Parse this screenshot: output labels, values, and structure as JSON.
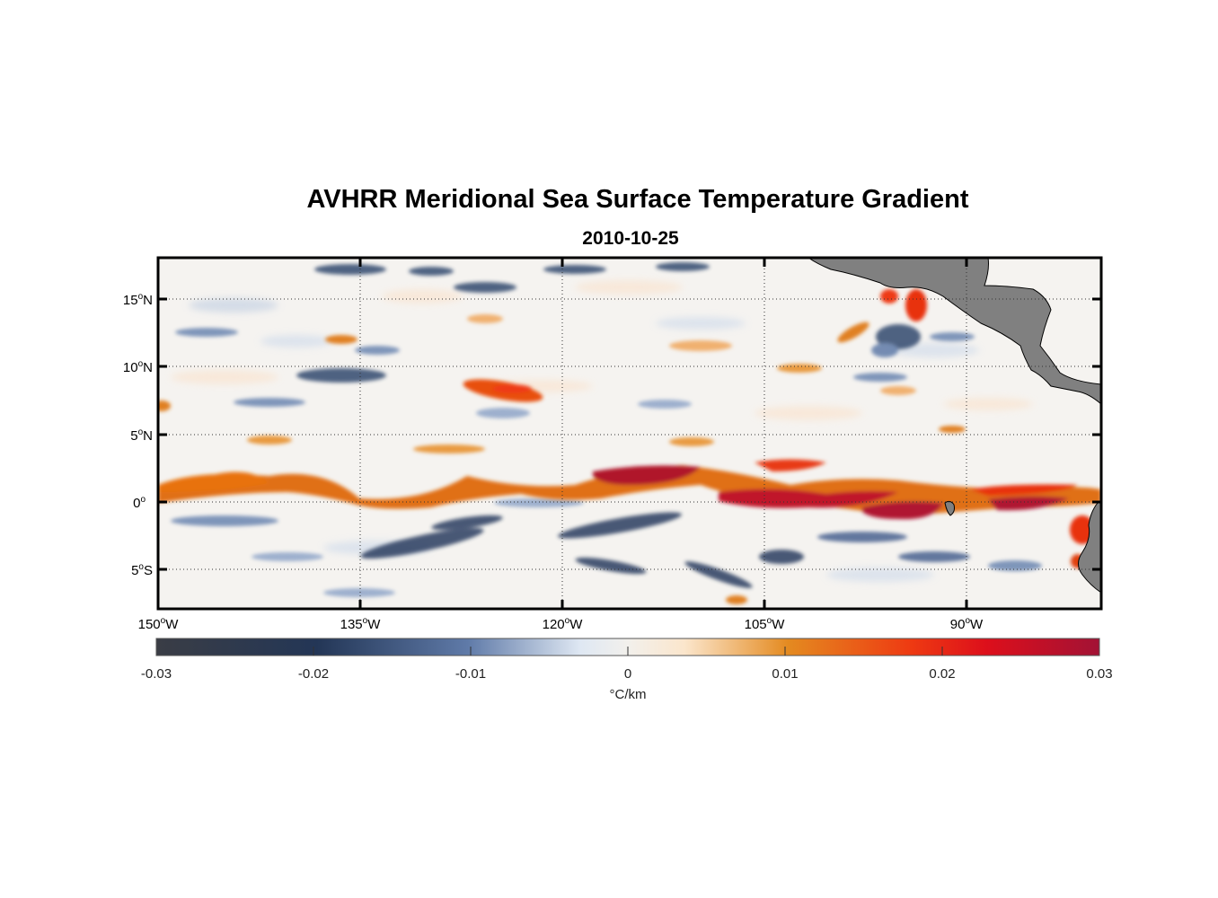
{
  "title": "AVHRR Meridional Sea Surface Temperature Gradient",
  "subtitle": "2010-10-25",
  "map": {
    "lon_range": [
      -150,
      -80
    ],
    "lat_range": [
      -8,
      18
    ],
    "lon_ticks": [
      {
        "value": -150,
        "label": "150",
        "sup": "o",
        "hem": "W"
      },
      {
        "value": -135,
        "label": "135",
        "sup": "o",
        "hem": "W"
      },
      {
        "value": -120,
        "label": "120",
        "sup": "o",
        "hem": "W"
      },
      {
        "value": -105,
        "label": "105",
        "sup": "o",
        "hem": "W"
      },
      {
        "value": -90,
        "label": "90",
        "sup": "o",
        "hem": "W"
      }
    ],
    "lat_ticks": [
      {
        "value": 15,
        "label": "15",
        "sup": "o",
        "hem": "N"
      },
      {
        "value": 10,
        "label": "10",
        "sup": "o",
        "hem": "N"
      },
      {
        "value": 5,
        "label": "5",
        "sup": "o",
        "hem": "N"
      },
      {
        "value": 0,
        "label": "0",
        "sup": "o",
        "hem": ""
      },
      {
        "value": -5,
        "label": "5",
        "sup": "o",
        "hem": "S"
      }
    ],
    "grid": "dotted",
    "land_color": "#808080"
  },
  "colorbar": {
    "min": -0.03,
    "max": 0.03,
    "ticks": [
      "-0.03",
      "-0.02",
      "-0.01",
      "0",
      "0.01",
      "0.02",
      "0.03"
    ],
    "label": "°C/km",
    "colors": [
      "#3a3d45",
      "#233656",
      "#5f7aa8",
      "#e6eef6",
      "#fbe9d3",
      "#e48a20",
      "#ee3a12",
      "#dd0f1b",
      "#a21235"
    ]
  }
}
